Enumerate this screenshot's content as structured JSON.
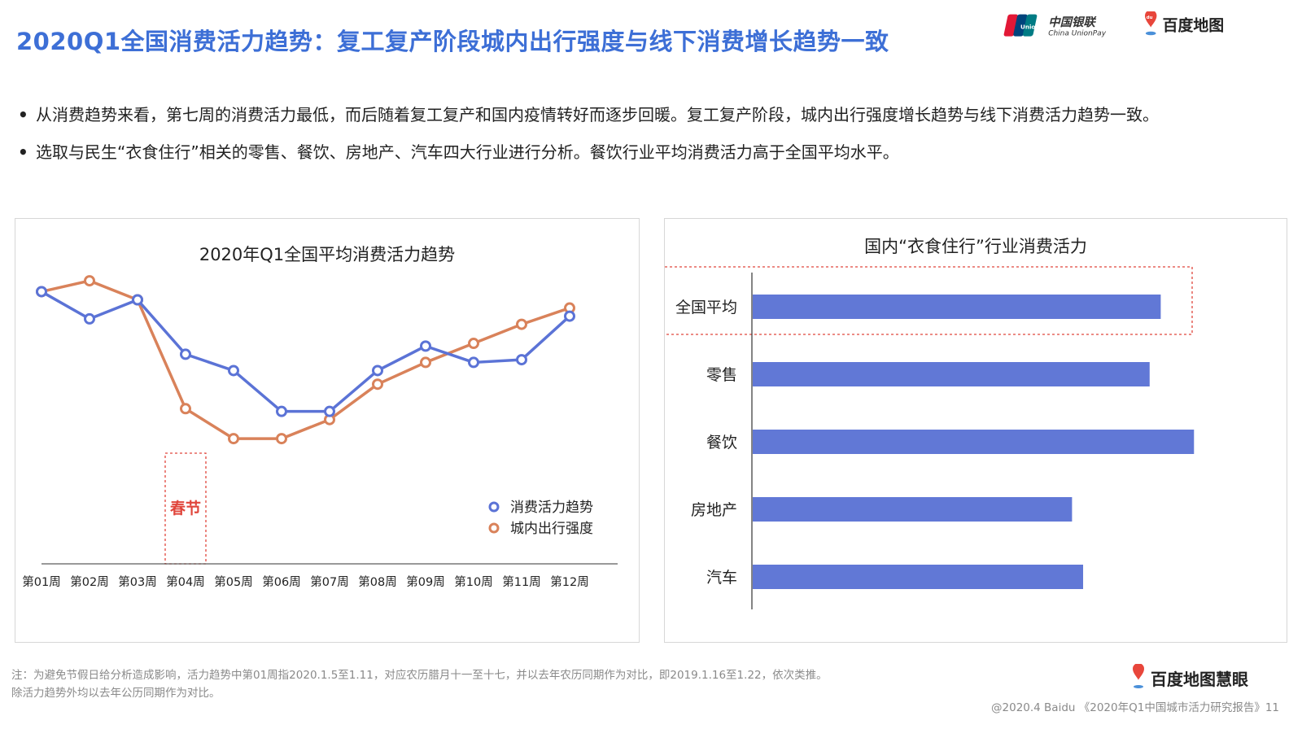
{
  "header": {
    "title": "2020Q1全国消费活力趋势：复工复产阶段城内出行强度与线下消费增长趋势一致",
    "logo_unionpay_badge": "UnionPay 银联",
    "logo_unionpay_cn": "中国银联",
    "logo_unionpay_en": "China UnionPay",
    "logo_baidu_map": "百度地图",
    "logo_du_badge": "du"
  },
  "bullets": [
    "从消费趋势来看，第七周的消费活力最低，而后随着复工复产和国内疫情转好而逐步回暖。复工复产阶段，城内出行强度增长趋势与线下消费活力趋势一致。",
    "选取与民生“衣食住行”相关的零售、餐饮、房地产、汽车四大行业进行分析。餐饮行业平均消费活力高于全国平均水平。"
  ],
  "bullet_marker": "•",
  "colors": {
    "title_blue": "#3d6fd6",
    "series_blue": "#5b73d6",
    "series_orange": "#d9825a",
    "bar_blue": "#6178d6",
    "highlight_red": "#e0463c"
  },
  "chart_data": [
    {
      "type": "line",
      "title": "2020年Q1全国平均消费活力趋势",
      "categories": [
        "第01周",
        "第02周",
        "第03周",
        "第04周",
        "第05周",
        "第06周",
        "第07周",
        "第08周",
        "第09周",
        "第10周",
        "第11周",
        "第12周"
      ],
      "series": [
        {
          "name": "消费活力趋势",
          "color": "#5b73d6",
          "values": [
            100,
            90,
            97,
            77,
            71,
            56,
            56,
            71,
            80,
            74,
            75,
            91
          ]
        },
        {
          "name": "城内出行强度",
          "color": "#d9825a",
          "values": [
            100,
            104,
            97,
            57,
            46,
            46,
            53,
            66,
            74,
            81,
            88,
            94
          ]
        }
      ],
      "ylim": [
        0,
        110
      ],
      "grid": false,
      "legend_position": "bottom-right",
      "annotation": {
        "label": "春节",
        "category": "第04周",
        "style": "dashed-red-box"
      }
    },
    {
      "type": "bar",
      "orientation": "horizontal",
      "title": "国内“衣食住行”行业消费活力",
      "categories": [
        "全国平均",
        "零售",
        "餐饮",
        "房地产",
        "汽车"
      ],
      "values": [
        92,
        89.5,
        99.5,
        72,
        74.5
      ],
      "xlim": [
        0,
        100
      ],
      "highlight": {
        "category": "全国平均",
        "style": "dashed-red-box"
      },
      "color": "#6178d6"
    }
  ],
  "footnote": [
    "注：为避免节假日给分析造成影响，活力趋势中第01周指2020.1.5至1.11，对应农历腊月十一至十七，并以去年农历同期作为对比，即2019.1.16至1.22，依次类推。",
    "除活力趋势外均以去年公历同期作为对比。"
  ],
  "brand_bottom": "百度地图慧眼",
  "source": "@2020.4 Baidu 《2020年Q1中国城市活力研究报告》11"
}
